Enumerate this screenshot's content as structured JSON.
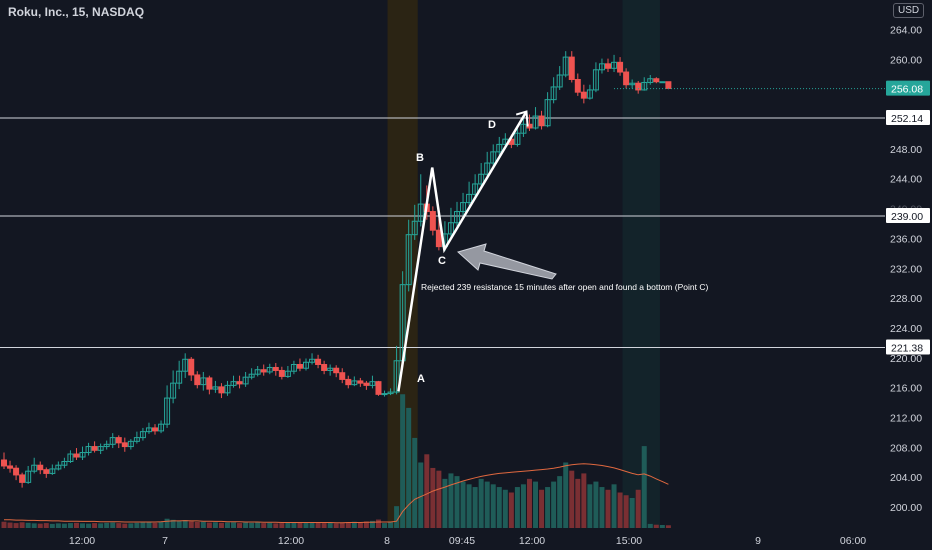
{
  "header": {
    "title": "Roku, Inc., 15, NASDAQ",
    "currency": "USD"
  },
  "colors": {
    "background": "#131722",
    "up": "#26a69a",
    "down": "#ef5350",
    "vol_up": "#1f5c58",
    "vol_down": "#7a2f33",
    "text": "#d1d4dc",
    "hline": "#d1d4dc",
    "ma": "#e0683f",
    "session_pre": "#2b2414",
    "session_post": "#13232a"
  },
  "chart_data": {
    "type": "candlestick",
    "title": "Roku, Inc., 15, NASDAQ",
    "y_ticks": [
      "264.00",
      "260.00",
      "256.00",
      "252.00",
      "248.00",
      "244.00",
      "240.00",
      "236.00",
      "232.00",
      "228.00",
      "224.00",
      "220.00",
      "216.00",
      "212.00",
      "208.00",
      "204.00",
      "200.00"
    ],
    "x_ticks": [
      "12:00",
      "7",
      "12:00",
      "8",
      "09:45",
      "12:00",
      "15:00",
      "9",
      "06:00"
    ],
    "ylim": [
      198.5,
      266.0
    ],
    "price_label": "256.08",
    "horizontal_levels": [
      {
        "value": 252.14,
        "label": "252.14"
      },
      {
        "value": 239.0,
        "label": "239.00"
      },
      {
        "value": 221.38,
        "label": "221.38"
      }
    ],
    "points": [
      {
        "name": "A",
        "value": 215.5
      },
      {
        "name": "B",
        "value": 245.5
      },
      {
        "name": "C",
        "value": 234.5
      },
      {
        "name": "D",
        "value": 253.0
      }
    ],
    "annotation": "Rejected 239 resistance 15 minutes after open and found a bottom (Point C)",
    "candles": [
      [
        206.3,
        205.5,
        207.3,
        205.1
      ],
      [
        205.5,
        205.2,
        206.2,
        204.6
      ],
      [
        205.2,
        204.3,
        205.6,
        203.6
      ],
      [
        204.3,
        203.3,
        204.6,
        202.6
      ],
      [
        203.3,
        204.8,
        205.5,
        203.1
      ],
      [
        204.8,
        205.6,
        206.6,
        204.5
      ],
      [
        205.6,
        205.0,
        206.1,
        204.4
      ],
      [
        205.0,
        204.5,
        205.3,
        203.9
      ],
      [
        204.5,
        205.1,
        205.7,
        204.3
      ],
      [
        205.1,
        205.6,
        206.1,
        204.9
      ],
      [
        205.6,
        206.1,
        206.6,
        205.2
      ],
      [
        206.1,
        207.1,
        207.6,
        205.9
      ],
      [
        207.1,
        206.7,
        207.9,
        206.3
      ],
      [
        206.7,
        207.3,
        208.1,
        206.3
      ],
      [
        207.3,
        208.1,
        208.6,
        206.9
      ],
      [
        208.1,
        207.6,
        208.8,
        207.3
      ],
      [
        207.6,
        208.1,
        208.5,
        207.1
      ],
      [
        208.1,
        208.4,
        208.9,
        207.7
      ],
      [
        208.4,
        209.3,
        209.9,
        207.9
      ],
      [
        209.3,
        208.6,
        209.6,
        207.9
      ],
      [
        208.6,
        208.1,
        209.3,
        207.4
      ],
      [
        208.1,
        208.8,
        209.1,
        207.7
      ],
      [
        208.8,
        209.3,
        210.1,
        208.5
      ],
      [
        209.3,
        210.1,
        210.6,
        208.9
      ],
      [
        210.1,
        210.6,
        211.3,
        209.8
      ],
      [
        210.6,
        210.2,
        211.1,
        209.7
      ],
      [
        210.2,
        211.1,
        211.6,
        209.9
      ],
      [
        211.1,
        214.6,
        216.3,
        210.6
      ],
      [
        214.6,
        216.6,
        218.3,
        213.9
      ],
      [
        216.6,
        218.2,
        219.6,
        215.8
      ],
      [
        218.2,
        219.8,
        220.6,
        217.3
      ],
      [
        219.8,
        217.7,
        220.1,
        216.9
      ],
      [
        217.7,
        216.4,
        218.2,
        215.9
      ],
      [
        216.4,
        217.3,
        218.1,
        215.6
      ],
      [
        217.3,
        215.8,
        217.6,
        215.1
      ],
      [
        215.8,
        216.1,
        216.9,
        215.3
      ],
      [
        216.1,
        215.3,
        216.6,
        214.6
      ],
      [
        215.3,
        216.3,
        216.9,
        214.9
      ],
      [
        216.3,
        216.8,
        217.6,
        216.0
      ],
      [
        216.8,
        216.5,
        217.6,
        215.9
      ],
      [
        216.5,
        217.4,
        218.1,
        216.1
      ],
      [
        217.4,
        217.8,
        218.6,
        217.1
      ],
      [
        217.8,
        218.4,
        218.9,
        217.5
      ],
      [
        218.4,
        218.1,
        219.1,
        217.6
      ],
      [
        218.1,
        218.7,
        219.2,
        217.8
      ],
      [
        218.7,
        218.3,
        219.3,
        217.6
      ],
      [
        218.3,
        217.5,
        218.8,
        217.1
      ],
      [
        217.5,
        218.2,
        218.9,
        217.3
      ],
      [
        218.2,
        219.1,
        219.6,
        217.8
      ],
      [
        219.1,
        218.6,
        219.9,
        218.2
      ],
      [
        218.6,
        219.4,
        219.9,
        218.3
      ],
      [
        219.4,
        219.8,
        220.6,
        219.1
      ],
      [
        219.8,
        219.1,
        220.4,
        218.6
      ],
      [
        219.1,
        218.3,
        219.6,
        217.8
      ],
      [
        218.3,
        218.6,
        219.1,
        217.6
      ],
      [
        218.6,
        218.0,
        219.0,
        217.4
      ],
      [
        218.0,
        217.1,
        218.6,
        216.6
      ],
      [
        217.1,
        216.4,
        217.6,
        215.9
      ],
      [
        216.4,
        216.9,
        217.5,
        216.2
      ],
      [
        216.9,
        216.6,
        217.3,
        216.1
      ],
      [
        216.6,
        216.3,
        216.9,
        215.7
      ],
      [
        216.3,
        216.8,
        217.6,
        215.9
      ],
      [
        216.8,
        215.1,
        216.9,
        214.9
      ],
      [
        215.1,
        215.2,
        215.6,
        214.8
      ],
      [
        215.2,
        215.4,
        215.9,
        215.0
      ],
      [
        215.4,
        219.6,
        221.6,
        215.1
      ],
      [
        219.6,
        229.8,
        231.6,
        218.9
      ],
      [
        229.8,
        236.5,
        238.5,
        228.9
      ],
      [
        236.5,
        238.3,
        240.5,
        235.8
      ],
      [
        238.3,
        240.6,
        244.6,
        237.6
      ],
      [
        240.6,
        239.6,
        243.1,
        238.5
      ],
      [
        239.6,
        237.1,
        240.3,
        236.4
      ],
      [
        237.1,
        234.9,
        238.6,
        234.4
      ],
      [
        234.9,
        236.6,
        238.3,
        234.3
      ],
      [
        236.6,
        238.1,
        240.1,
        236.2
      ],
      [
        238.1,
        239.6,
        240.9,
        237.6
      ],
      [
        239.6,
        240.8,
        242.1,
        239.1
      ],
      [
        240.8,
        241.9,
        243.6,
        240.4
      ],
      [
        241.9,
        243.3,
        244.6,
        241.6
      ],
      [
        243.3,
        244.6,
        246.1,
        242.9
      ],
      [
        244.6,
        246.1,
        247.6,
        244.1
      ],
      [
        246.1,
        247.6,
        248.6,
        245.6
      ],
      [
        247.6,
        248.6,
        249.6,
        247.1
      ],
      [
        248.6,
        249.3,
        250.1,
        248.1
      ],
      [
        249.3,
        248.6,
        249.9,
        248.1
      ],
      [
        248.6,
        250.1,
        251.1,
        248.3
      ],
      [
        250.1,
        251.3,
        252.1,
        249.6
      ],
      [
        251.3,
        250.8,
        252.6,
        250.4
      ],
      [
        250.8,
        252.4,
        253.6,
        250.6
      ],
      [
        252.4,
        251.1,
        253.1,
        250.6
      ],
      [
        251.1,
        254.6,
        255.6,
        250.9
      ],
      [
        254.6,
        256.3,
        257.6,
        254.1
      ],
      [
        256.3,
        257.9,
        259.1,
        255.9
      ],
      [
        257.9,
        260.3,
        261.1,
        257.6
      ],
      [
        260.3,
        257.3,
        261.1,
        256.9
      ],
      [
        257.3,
        255.6,
        258.1,
        255.1
      ],
      [
        255.6,
        254.8,
        256.6,
        254.1
      ],
      [
        254.8,
        255.9,
        256.6,
        254.6
      ],
      [
        255.9,
        258.6,
        259.6,
        255.6
      ],
      [
        258.6,
        259.4,
        260.1,
        258.1
      ],
      [
        259.4,
        258.8,
        260.1,
        258.3
      ],
      [
        258.8,
        259.6,
        260.6,
        258.3
      ],
      [
        259.6,
        258.3,
        260.3,
        257.8
      ],
      [
        258.3,
        256.6,
        258.8,
        256.1
      ],
      [
        256.6,
        256.8,
        257.3,
        256.1
      ],
      [
        256.8,
        255.9,
        257.1,
        255.4
      ],
      [
        255.9,
        256.9,
        257.6,
        255.8
      ],
      [
        256.9,
        257.4,
        257.9,
        256.6
      ],
      [
        257.4,
        257.0,
        257.6,
        256.8
      ],
      [
        257.0,
        257.0,
        257.0,
        257.0
      ],
      [
        257.0,
        256.1,
        257.0,
        256.0
      ]
    ],
    "volume": [
      2.3,
      2.0,
      1.8,
      2.1,
      1.9,
      1.7,
      1.6,
      1.8,
      1.5,
      1.7,
      1.6,
      1.8,
      1.9,
      1.7,
      1.6,
      1.8,
      1.7,
      1.9,
      2.0,
      1.8,
      1.6,
      1.7,
      1.9,
      2.0,
      2.2,
      1.9,
      2.3,
      3.4,
      3.0,
      2.6,
      2.9,
      2.4,
      2.2,
      2.3,
      2.0,
      2.1,
      1.9,
      2.0,
      2.1,
      1.8,
      2.0,
      1.9,
      2.1,
      1.8,
      1.9,
      1.7,
      1.8,
      1.9,
      2.0,
      1.9,
      2.2,
      2.1,
      1.9,
      1.8,
      2.0,
      1.7,
      1.9,
      2.1,
      2.3,
      2.0,
      2.4,
      2.6,
      3.1,
      1.8,
      2.2,
      8.0,
      49.0,
      44.0,
      33.0,
      24.0,
      27.0,
      22.0,
      21.0,
      18.0,
      20.0,
      19.0,
      17.0,
      16.0,
      15.0,
      18.0,
      17.0,
      16.0,
      15.0,
      14.0,
      13.0,
      15.0,
      16.0,
      18.0,
      17.0,
      14.0,
      15.0,
      17.0,
      19.0,
      24.0,
      21.0,
      18.0,
      20.0,
      16.0,
      17.0,
      15.0,
      14.0,
      16.0,
      13.0,
      12.0,
      11.0,
      14.0,
      30.0,
      1.5,
      1.2,
      1.1,
      1.0
    ],
    "volume_ma": [
      3.0,
      3.0,
      2.9,
      2.9,
      2.8,
      2.8,
      2.7,
      2.7,
      2.6,
      2.6,
      2.5,
      2.5,
      2.5,
      2.4,
      2.4,
      2.4,
      2.3,
      2.3,
      2.3,
      2.3,
      2.2,
      2.2,
      2.2,
      2.2,
      2.2,
      2.2,
      2.3,
      2.5,
      2.6,
      2.6,
      2.7,
      2.6,
      2.6,
      2.5,
      2.5,
      2.4,
      2.4,
      2.3,
      2.3,
      2.3,
      2.2,
      2.2,
      2.2,
      2.1,
      2.1,
      2.1,
      2.0,
      2.0,
      2.0,
      2.0,
      2.0,
      2.0,
      2.0,
      2.0,
      2.0,
      1.9,
      1.9,
      2.0,
      2.0,
      2.0,
      2.1,
      2.1,
      2.2,
      2.2,
      2.2,
      2.5,
      6.0,
      8.5,
      10.5,
      11.5,
      12.5,
      13.5,
      14.3,
      15.0,
      15.8,
      16.5,
      17.2,
      17.8,
      18.4,
      18.9,
      19.3,
      19.7,
      20.0,
      20.2,
      20.4,
      20.6,
      20.8,
      21.0,
      21.2,
      21.4,
      21.6,
      21.9,
      22.3,
      22.8,
      23.2,
      23.4,
      23.5,
      23.4,
      23.2,
      22.9,
      22.5,
      22.0,
      21.4,
      20.7,
      20.0,
      19.5,
      19.8,
      19.0,
      18.0,
      17.0,
      16.0
    ]
  }
}
